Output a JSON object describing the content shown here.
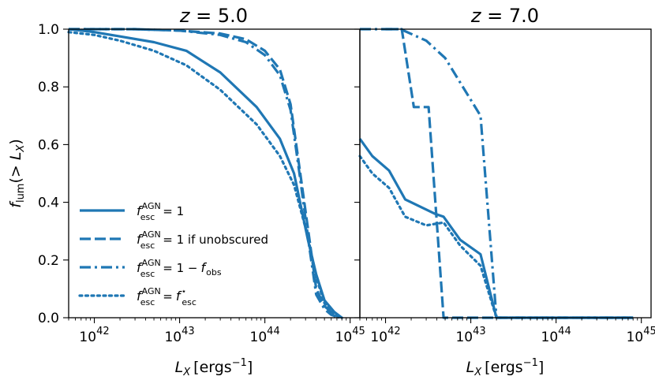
{
  "chart_data": [
    {
      "type": "line",
      "title_var": "z",
      "title_val": "5.0",
      "xlabel_main": "L",
      "xlabel_sub": "X",
      "xlabel_unit": "[ergs",
      "xlabel_exp": "−1",
      "ylabel": "f_lum(> L_X)",
      "xscale": "log",
      "xlim": [
        5e+41,
        1.3e+45
      ],
      "ylim": [
        0,
        1.0
      ],
      "xticks": [
        {
          "base": "10",
          "exp": "42"
        },
        {
          "base": "10",
          "exp": "43"
        },
        {
          "base": "10",
          "exp": "44"
        },
        {
          "base": "10",
          "exp": "45"
        }
      ],
      "yticks": [
        "0.0",
        "0.2",
        "0.4",
        "0.6",
        "0.8",
        "1.0"
      ],
      "legend_loc": "lower left",
      "series": [
        {
          "name": "f_esc^AGN = 1",
          "dash": "solid",
          "x": [
            5e+41,
            1e+42,
            2e+42,
            5e+42,
            1.2e+43,
            3e+43,
            8e+43,
            1.5e+44,
            2.2e+44,
            3.2e+44,
            4e+44,
            5e+44,
            6.5e+44,
            8e+44
          ],
          "y": [
            1.0,
            0.99,
            0.975,
            0.955,
            0.925,
            0.85,
            0.73,
            0.62,
            0.5,
            0.27,
            0.15,
            0.06,
            0.02,
            0.0
          ]
        },
        {
          "name": "f_esc^AGN = 1 if unobscured",
          "dash": "dashed",
          "x": [
            5e+41,
            1e+42,
            3e+42,
            1e+43,
            3e+43,
            6e+43,
            1e+44,
            1.5e+44,
            2e+44,
            2.6e+44,
            3.3e+44,
            4e+44,
            5e+44,
            6e+44,
            7.5e+44
          ],
          "y": [
            1.0,
            1.0,
            1.0,
            0.995,
            0.985,
            0.965,
            0.925,
            0.86,
            0.74,
            0.5,
            0.28,
            0.1,
            0.04,
            0.02,
            0.0
          ]
        },
        {
          "name": "f_esc^AGN = 1 − f_obs",
          "dash": "dashdot",
          "x": [
            5e+41,
            1e+42,
            3e+42,
            1e+43,
            3e+43,
            6e+43,
            1e+44,
            1.5e+44,
            2e+44,
            2.6e+44,
            3.3e+44,
            4e+44,
            5e+44,
            6e+44,
            7.5e+44
          ],
          "y": [
            1.0,
            1.0,
            1.0,
            0.995,
            0.98,
            0.955,
            0.91,
            0.84,
            0.72,
            0.48,
            0.25,
            0.08,
            0.03,
            0.01,
            0.0
          ]
        },
        {
          "name": "f_esc^AGN = f_esc^*",
          "dash": "dotted",
          "x": [
            5e+41,
            1e+42,
            2e+42,
            5e+42,
            1.2e+43,
            3e+43,
            8e+43,
            1.5e+44,
            2.2e+44,
            3.2e+44,
            4e+44,
            5e+44,
            6.5e+44,
            8e+44
          ],
          "y": [
            0.99,
            0.98,
            0.96,
            0.925,
            0.875,
            0.79,
            0.67,
            0.56,
            0.46,
            0.28,
            0.14,
            0.05,
            0.01,
            0.0
          ]
        }
      ]
    },
    {
      "type": "line",
      "title_var": "z",
      "title_val": "7.0",
      "xlabel_main": "L",
      "xlabel_sub": "X",
      "xlabel_unit": "[ergs",
      "xlabel_exp": "−1",
      "xscale": "log",
      "xlim": [
        5e+41,
        1.3e+45
      ],
      "ylim": [
        0,
        1.0
      ],
      "xticks": [
        {
          "base": "10",
          "exp": "42"
        },
        {
          "base": "10",
          "exp": "43"
        },
        {
          "base": "10",
          "exp": "44"
        },
        {
          "base": "10",
          "exp": "45"
        }
      ],
      "series": [
        {
          "name": "f_esc^AGN = 1",
          "dash": "solid",
          "x": [
            5e+41,
            7e+41,
            1.1e+42,
            1.7e+42,
            3.8e+42,
            4.8e+42,
            7.5e+42,
            1.3e+43,
            2e+43,
            1e+44,
            8e+44
          ],
          "y": [
            0.62,
            0.56,
            0.51,
            0.41,
            0.36,
            0.35,
            0.27,
            0.22,
            0.0,
            0.0,
            0.0
          ]
        },
        {
          "name": "f_esc^AGN = 1 if unobscured",
          "dash": "dashed",
          "x": [
            1e+42,
            1.55e+42,
            2.15e+42,
            3e+42,
            3.2e+42,
            4.8e+42,
            2e+43,
            1e+44,
            8e+44
          ],
          "y": [
            1.0,
            1.0,
            0.73,
            0.73,
            0.73,
            0.0,
            0.0,
            0.0,
            0.0
          ]
        },
        {
          "name": "f_esc^AGN = 1 − f_obs",
          "dash": "dashdot",
          "x": [
            5e+41,
            1.5e+42,
            3e+42,
            5e+42,
            1.3e+43,
            2e+43,
            1e+44,
            8e+44
          ],
          "y": [
            1.0,
            1.0,
            0.96,
            0.9,
            0.7,
            0.0,
            0.0,
            0.0
          ]
        },
        {
          "name": "f_esc^AGN = f_esc^*",
          "dash": "dotted",
          "x": [
            5e+41,
            7e+41,
            1.1e+42,
            1.7e+42,
            3e+42,
            4.8e+42,
            7.5e+42,
            1.3e+43,
            2e+43,
            1e+44,
            8e+44
          ],
          "y": [
            0.56,
            0.5,
            0.45,
            0.35,
            0.32,
            0.33,
            0.25,
            0.18,
            0.0,
            0.0,
            0.0
          ]
        }
      ]
    }
  ],
  "legend": [
    {
      "dash": "solid",
      "main": "f",
      "sup": "AGN",
      "sub": "esc",
      "rhs": "= 1"
    },
    {
      "dash": "dashed",
      "main": "f",
      "sup": "AGN",
      "sub": "esc",
      "rhs": "= 1 if unobscured"
    },
    {
      "dash": "dashdot",
      "main": "f",
      "sup": "AGN",
      "sub": "esc",
      "rhs": "= 1 − f",
      "rhs_sub": "obs"
    },
    {
      "dash": "dotted",
      "main": "f",
      "sup": "AGN",
      "sub": "esc",
      "rhs": "= f",
      "rhs_sup": "⋆",
      "rhs_sub": "esc"
    }
  ],
  "colors": {
    "line": "#1f77b4",
    "axes": "#000000"
  }
}
